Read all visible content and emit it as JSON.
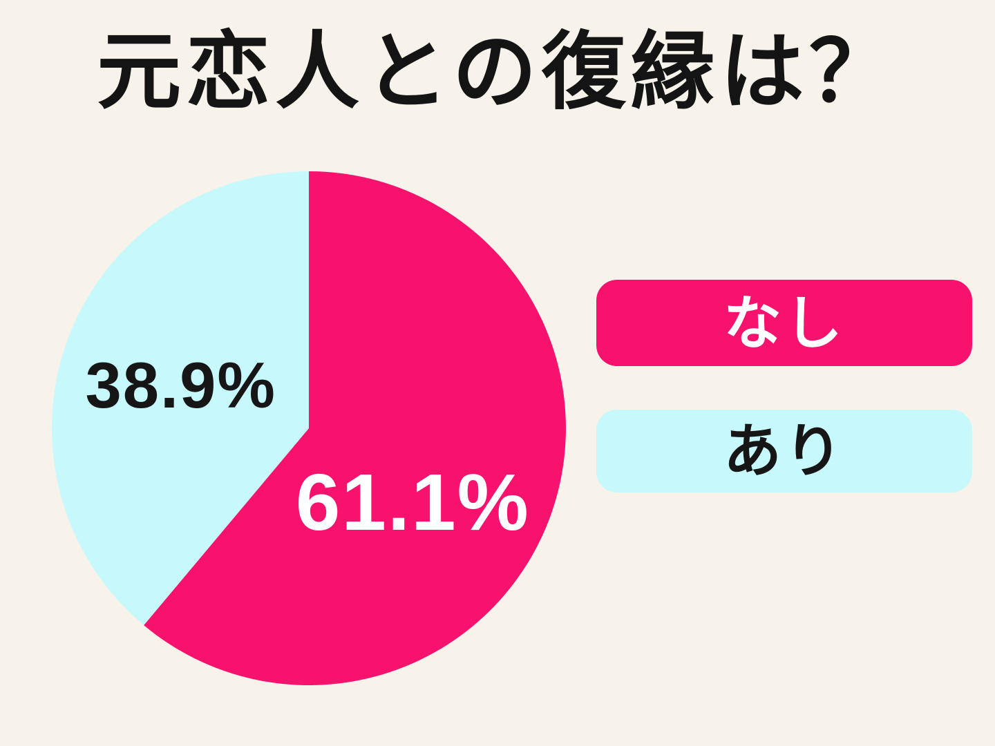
{
  "page": {
    "background": "#F7F3EA"
  },
  "title": "元恋人との復縁は？",
  "chart_data": {
    "type": "pie",
    "title": "元恋人との復縁は？",
    "unit": "%",
    "categories": [
      "なし",
      "あり"
    ],
    "values": [
      61.1,
      38.9
    ],
    "slices": [
      {
        "label": "なし",
        "value": 61.1,
        "display": "61.1%",
        "color": "#F7126E",
        "label_color": "#FFFFFF"
      },
      {
        "label": "あり",
        "value": 38.9,
        "display": "38.9%",
        "color": "#C7F9FC",
        "label_color": "#161616"
      }
    ],
    "start_angle_deg": 0,
    "direction": "clockwise",
    "legend_position": "right",
    "background": "#F7F3EA"
  }
}
